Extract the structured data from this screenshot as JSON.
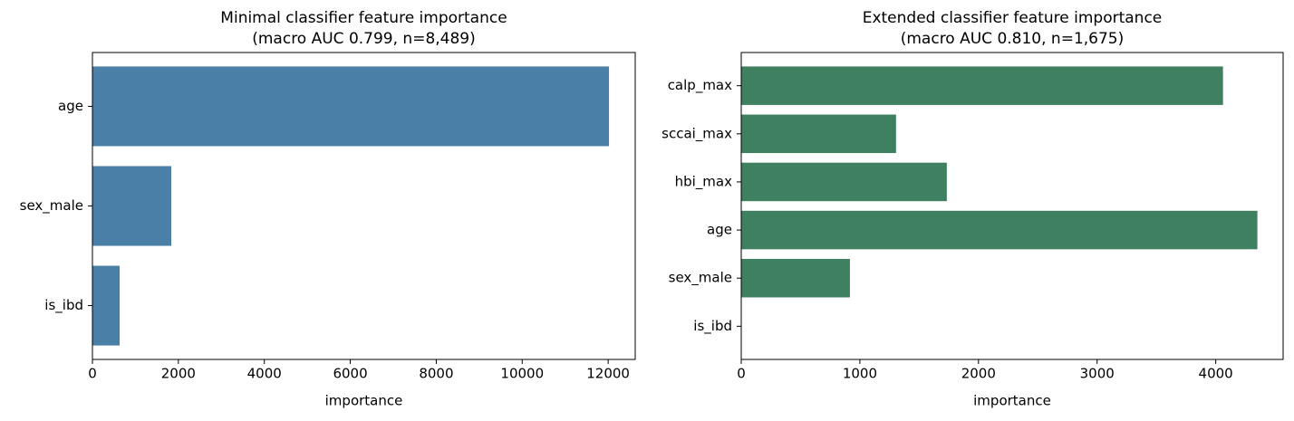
{
  "chart_data": [
    {
      "type": "barh",
      "title": [
        "Minimal classifier feature importance",
        "(macro AUC 0.799, n=8,489)"
      ],
      "xlabel": "importance",
      "categories": [
        "age",
        "sex_male",
        "is_ibd"
      ],
      "values": [
        12020,
        1835,
        633
      ],
      "color": "#4a7fa8",
      "xlim": [
        0,
        12630
      ],
      "xticks": [
        0,
        2000,
        4000,
        6000,
        8000,
        10000,
        12000
      ],
      "grid": false
    },
    {
      "type": "barh",
      "title": [
        "Extended classifier feature importance",
        "(macro AUC 0.810, n=1,675)"
      ],
      "xlabel": "importance",
      "categories": [
        "calp_max",
        "sccai_max",
        "hbi_max",
        "age",
        "sex_male",
        "is_ibd"
      ],
      "values": [
        4061,
        1305,
        1733,
        4351,
        916,
        0
      ],
      "color": "#3e8060",
      "xlim": [
        0,
        4568
      ],
      "xticks": [
        0,
        1000,
        2000,
        3000,
        4000
      ],
      "grid": false
    }
  ]
}
